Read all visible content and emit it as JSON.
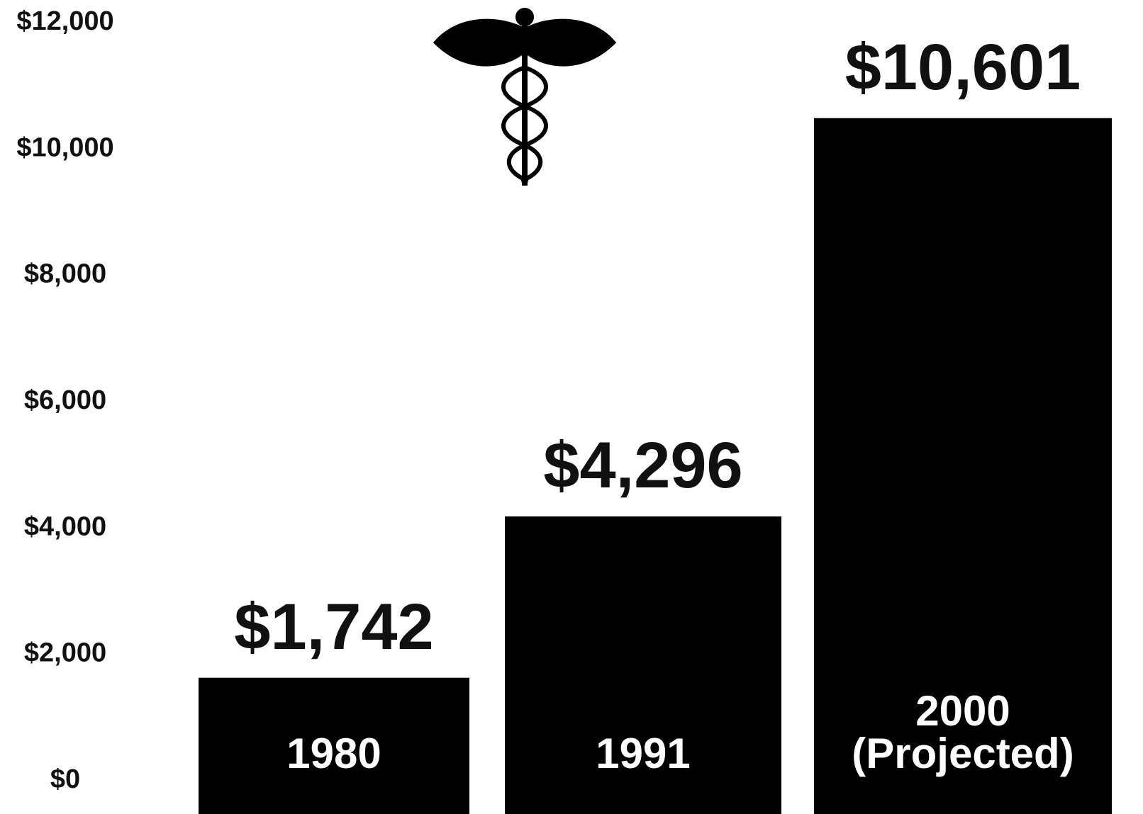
{
  "chart_data": {
    "type": "bar",
    "categories": [
      "1980",
      "1991",
      "2000 (Projected)"
    ],
    "values": [
      1742,
      4296,
      10601
    ],
    "value_labels": [
      "$1,742",
      "$4,296",
      "$10,601"
    ],
    "color": "#000000",
    "ylim": [
      0,
      12000
    ],
    "yticks": [
      {
        "value": 0,
        "label": "$0"
      },
      {
        "value": 2000,
        "label": "$2,000"
      },
      {
        "value": 4000,
        "label": "$4,000"
      },
      {
        "value": 6000,
        "label": "$6,000"
      },
      {
        "value": 8000,
        "label": "$8,000"
      },
      {
        "value": 10000,
        "label": "$10,000"
      },
      {
        "value": 12000,
        "label": "$12,000"
      }
    ],
    "grid": false
  }
}
